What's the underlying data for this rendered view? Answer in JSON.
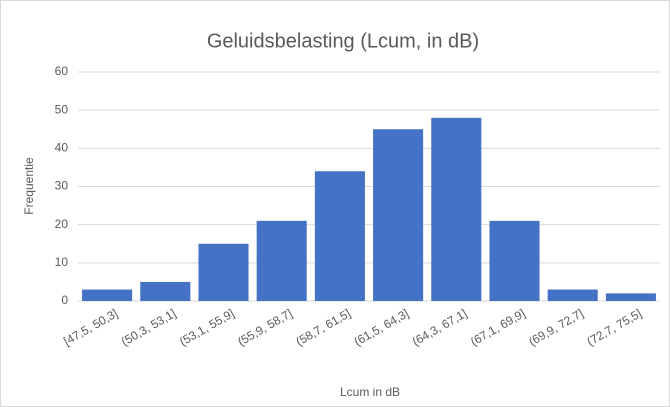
{
  "chart_data": {
    "type": "bar",
    "title": "Geluidsbelasting (Lcum, in dB)",
    "x_label": "Lcum in dB",
    "y_label": "Frequentie",
    "categories": [
      "[47,5, 50,3]",
      "(50,3, 53,1]",
      "(53,1, 55,9]",
      "(55,9, 58,7]",
      "(58,7, 61,5]",
      "(61,5, 64,3]",
      "(64,3, 67,1]",
      "(67,1, 69,9]",
      "(69,9, 72,7]",
      "(72,7, 75,5]"
    ],
    "values": [
      3,
      5,
      15,
      21,
      34,
      45,
      48,
      21,
      3,
      2
    ],
    "color": "#4472c4",
    "ylim": [
      0,
      60
    ],
    "yticks": [
      0,
      10,
      20,
      30,
      40,
      50,
      60
    ],
    "grid": true
  }
}
